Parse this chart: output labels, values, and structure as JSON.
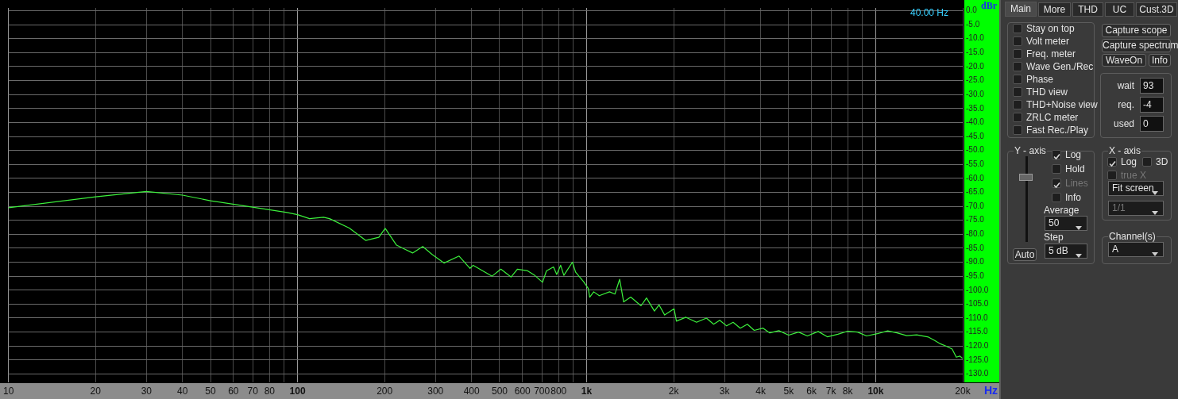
{
  "chart_data": [
    {
      "type": "line",
      "xlabel": "Hz",
      "ylabel": "dBr",
      "annotations": [
        "40.00 Hz"
      ],
      "log": "x",
      "grid": true,
      "marker": "none",
      "line_style": "solid",
      "xlim": [
        10,
        20000
      ],
      "ylim": [
        -133,
        1
      ],
      "xticks": [
        {
          "value": 10,
          "label": "10"
        },
        20,
        30,
        40,
        50,
        60,
        70,
        80,
        {
          "value": 90,
          "label": null
        },
        100,
        200,
        300,
        400,
        500,
        600,
        700,
        800,
        {
          "value": 900,
          "label": null
        },
        {
          "value": 1000,
          "label": "1k"
        },
        {
          "value": 2000,
          "label": "2k"
        },
        {
          "value": 3000,
          "label": "3k"
        },
        {
          "value": 4000,
          "label": "4k"
        },
        {
          "value": 5000,
          "label": "5k"
        },
        {
          "value": 6000,
          "label": "6k"
        },
        {
          "value": 7000,
          "label": "7k"
        },
        {
          "value": 8000,
          "label": "8k"
        },
        {
          "value": 9000,
          "label": null
        },
        {
          "value": 10000,
          "label": "10k"
        },
        {
          "value": 20000,
          "label": "20k"
        }
      ],
      "yticks": [
        {
          "value": 0,
          "label": "0.0"
        },
        {
          "value": -5,
          "label": "-5.0"
        },
        {
          "value": -10,
          "label": "-10.0"
        },
        {
          "value": -15,
          "label": "-15.0"
        },
        {
          "value": -20,
          "label": "-20.0"
        },
        {
          "value": -25,
          "label": "-25.0"
        },
        {
          "value": -30,
          "label": "-30.0"
        },
        {
          "value": -35,
          "label": "-35.0"
        },
        {
          "value": -40,
          "label": "-40.0"
        },
        {
          "value": -45,
          "label": "-45.0"
        },
        {
          "value": -50,
          "label": "-50.0"
        },
        {
          "value": -55,
          "label": "-55.0"
        },
        {
          "value": -60,
          "label": "-60.0"
        },
        {
          "value": -65,
          "label": "-65.0"
        },
        {
          "value": -70,
          "label": "-70.0"
        },
        {
          "value": -75,
          "label": "-75.0"
        },
        {
          "value": -80,
          "label": "-80.0"
        },
        {
          "value": -85,
          "label": "-85.0"
        },
        {
          "value": -90,
          "label": "-90.0"
        },
        {
          "value": -95,
          "label": "-95.0"
        },
        {
          "value": -100,
          "label": "-100.0"
        },
        {
          "value": -105,
          "label": "-105.0"
        },
        {
          "value": -110,
          "label": "-110.0"
        },
        {
          "value": -115,
          "label": "-115.0"
        },
        {
          "value": -120,
          "label": "-120.0"
        },
        {
          "value": -125,
          "label": "-125.0"
        },
        {
          "value": -130,
          "label": "-130.0"
        }
      ],
      "x": [
        10,
        20,
        30,
        40,
        50,
        67,
        92,
        100,
        110,
        123,
        129,
        151,
        172,
        191,
        201,
        220,
        250,
        271,
        292,
        321,
        362,
        395,
        405,
        471,
        505,
        548,
        576,
        625,
        661,
        704,
        726,
        768,
        788,
        813,
        834,
        893,
        916,
        975,
        1013,
        1025,
        1058,
        1106,
        1200,
        1253,
        1301,
        1343,
        1421,
        1542,
        1611,
        1716,
        1781,
        1862,
        2007,
        2045,
        2205,
        2400,
        2596,
        2750,
        2887,
        3050,
        3212,
        3400,
        3597,
        3800,
        4077,
        4300,
        4623,
        5000,
        5408,
        5800,
        6324,
        6800,
        7396,
        8000,
        8650,
        9300,
        10125,
        11000,
        11846,
        12800,
        13862,
        15225,
        16000,
        16731,
        17500,
        18380,
        19000,
        19568,
        19950
      ],
      "series": [
        {
          "color": "#3cf03c",
          "values": [
            -70.5,
            -66.6,
            -64.7,
            -66.0,
            -68.0,
            -70.0,
            -72.2,
            -73.0,
            -74.4,
            -73.9,
            -74.4,
            -77.8,
            -82.2,
            -81.1,
            -77.9,
            -83.9,
            -86.7,
            -84.4,
            -87.2,
            -90.3,
            -87.8,
            -92.2,
            -91.1,
            -95.0,
            -92.5,
            -95.3,
            -92.5,
            -93.1,
            -94.7,
            -97.2,
            -93.1,
            -91.7,
            -94.4,
            -91.1,
            -94.7,
            -90.0,
            -93.6,
            -96.9,
            -99.4,
            -102.5,
            -100.6,
            -102.0,
            -100.6,
            -101.4,
            -96.1,
            -104.2,
            -102.5,
            -105.6,
            -102.8,
            -107.5,
            -105.3,
            -108.9,
            -106.7,
            -111.1,
            -109.7,
            -111.5,
            -110.0,
            -112.2,
            -110.8,
            -112.8,
            -111.5,
            -113.6,
            -112.2,
            -114.4,
            -113.6,
            -115.3,
            -114.5,
            -116.1,
            -115.0,
            -116.4,
            -114.8,
            -116.7,
            -115.8,
            -114.7,
            -115.0,
            -116.4,
            -115.6,
            -114.6,
            -115.3,
            -116.3,
            -116.0,
            -116.8,
            -118.0,
            -119.2,
            -120.0,
            -121.1,
            -124.0,
            -123.6,
            -124.4
          ]
        }
      ]
    },
    {
      "type": "other",
      "annotations": [
        "Main",
        "More",
        "THD",
        "UC",
        "Cust.3D",
        "Stay on top",
        "Volt meter",
        "Freq. meter",
        "Wave Gen./Rec",
        "Phase",
        "THD view",
        "THD+Noise view",
        "ZRLC meter",
        "Fast Rec./Play",
        "Capture scope",
        "Capture spectrum",
        "WaveOn",
        "Info",
        "wait",
        "93",
        "req.",
        "-4",
        "used",
        "0",
        "Y - axis",
        "Log",
        "Hold",
        "Lines",
        "Info",
        "Average",
        "50",
        "Step",
        "5 dB",
        "Auto",
        "X - axis",
        "Log",
        "3D",
        "true X",
        "Fit screen",
        "1/1",
        "Channel(s)",
        "A"
      ]
    }
  ]
}
